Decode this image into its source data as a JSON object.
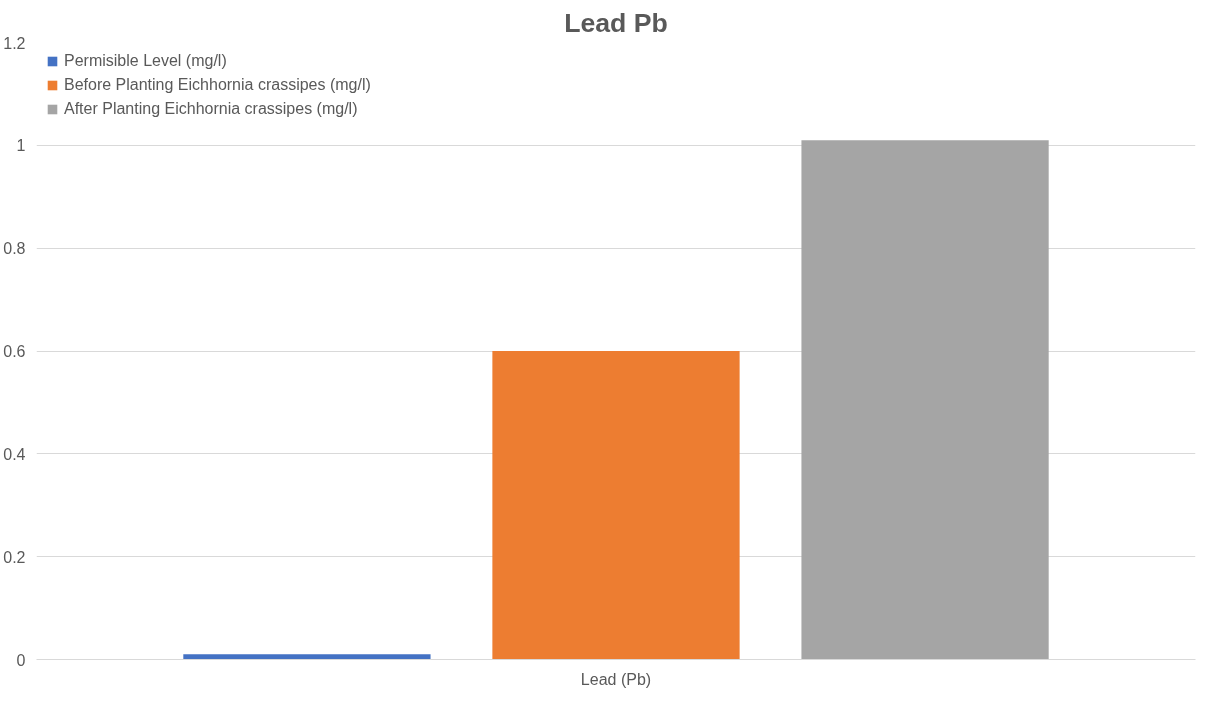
{
  "chart_data": {
    "type": "bar",
    "title": "Lead Pb",
    "categories": [
      "Lead (Pb)"
    ],
    "series": [
      {
        "name": "Permisible Level (mg/l)",
        "color": "#4472c4",
        "values": [
          0.01
        ]
      },
      {
        "name": "Before Planting Eichhornia crassipes (mg/l)",
        "color": "#ed7d31",
        "values": [
          0.6
        ]
      },
      {
        "name": "After Planting Eichhornia crassipes (mg/l)",
        "color": "#a5a5a5",
        "values": [
          1.01
        ]
      }
    ],
    "ylim": [
      0,
      1.2
    ],
    "yticks": [
      0,
      0.2,
      0.4,
      0.6,
      0.8,
      1,
      1.2
    ],
    "grid": "y",
    "legend": "top left"
  }
}
